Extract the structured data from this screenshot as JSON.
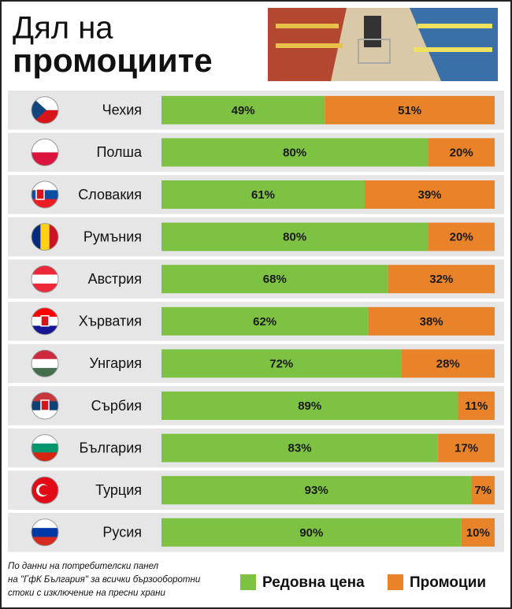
{
  "chart_data": {
    "type": "stacked-bar",
    "title_lines": [
      "Дял на",
      "промоциите"
    ],
    "categories": [
      "Чехия",
      "Полша",
      "Словакия",
      "Румъния",
      "Австрия",
      "Хърватия",
      "Унгария",
      "Сърбия",
      "България",
      "Турция",
      "Русия"
    ],
    "series": [
      {
        "name": "Редовна цена",
        "color": "#7dc242",
        "values": [
          49,
          80,
          61,
          80,
          68,
          62,
          72,
          89,
          83,
          93,
          90
        ],
        "value_labels": [
          "49%",
          "80%",
          "61%",
          "80%",
          "68%",
          "62%",
          "72%",
          "89%",
          "83%",
          "93%",
          "90%"
        ]
      },
      {
        "name": "Промоции",
        "color": "#e8832a",
        "values": [
          51,
          20,
          39,
          20,
          32,
          38,
          28,
          11,
          17,
          7,
          10
        ],
        "value_labels": [
          "51%",
          "20%",
          "39%",
          "20%",
          "32%",
          "38%",
          "28%",
          "11%",
          "17%",
          "7%",
          "10%"
        ]
      }
    ],
    "xlim": [
      0,
      100
    ],
    "note_lines": [
      "По данни на потребителски панел",
      "на \"ГфК България\" за всички бързооборотни",
      "стоки с изключение на пресни храни"
    ]
  }
}
